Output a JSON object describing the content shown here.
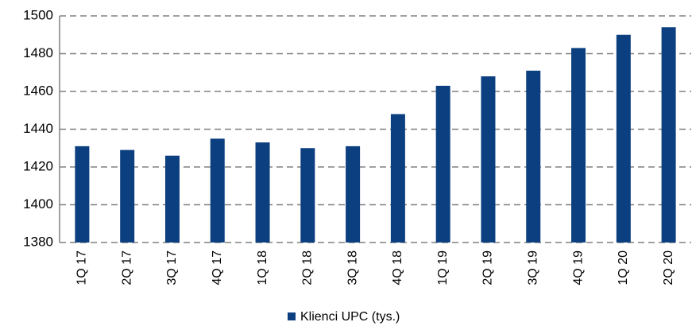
{
  "chart_data": {
    "type": "bar",
    "categories": [
      "1Q 17",
      "2Q 17",
      "3Q 17",
      "4Q 17",
      "1Q 18",
      "2Q 18",
      "3Q 18",
      "4Q 18",
      "1Q 19",
      "2Q 19",
      "3Q 19",
      "4Q 19",
      "1Q 20",
      "2Q 20"
    ],
    "series": [
      {
        "name": "Klienci UPC (tys.)",
        "color": "#0b3f7f",
        "values": [
          1431,
          1429,
          1426,
          1435,
          1433,
          1430,
          1431,
          1448,
          1463,
          1468,
          1471,
          1483,
          1490,
          1494
        ]
      }
    ],
    "ylim": [
      1380,
      1500
    ],
    "yticks": [
      1380,
      1400,
      1420,
      1440,
      1460,
      1480,
      1500
    ],
    "grid": true,
    "legend": "bottom"
  }
}
